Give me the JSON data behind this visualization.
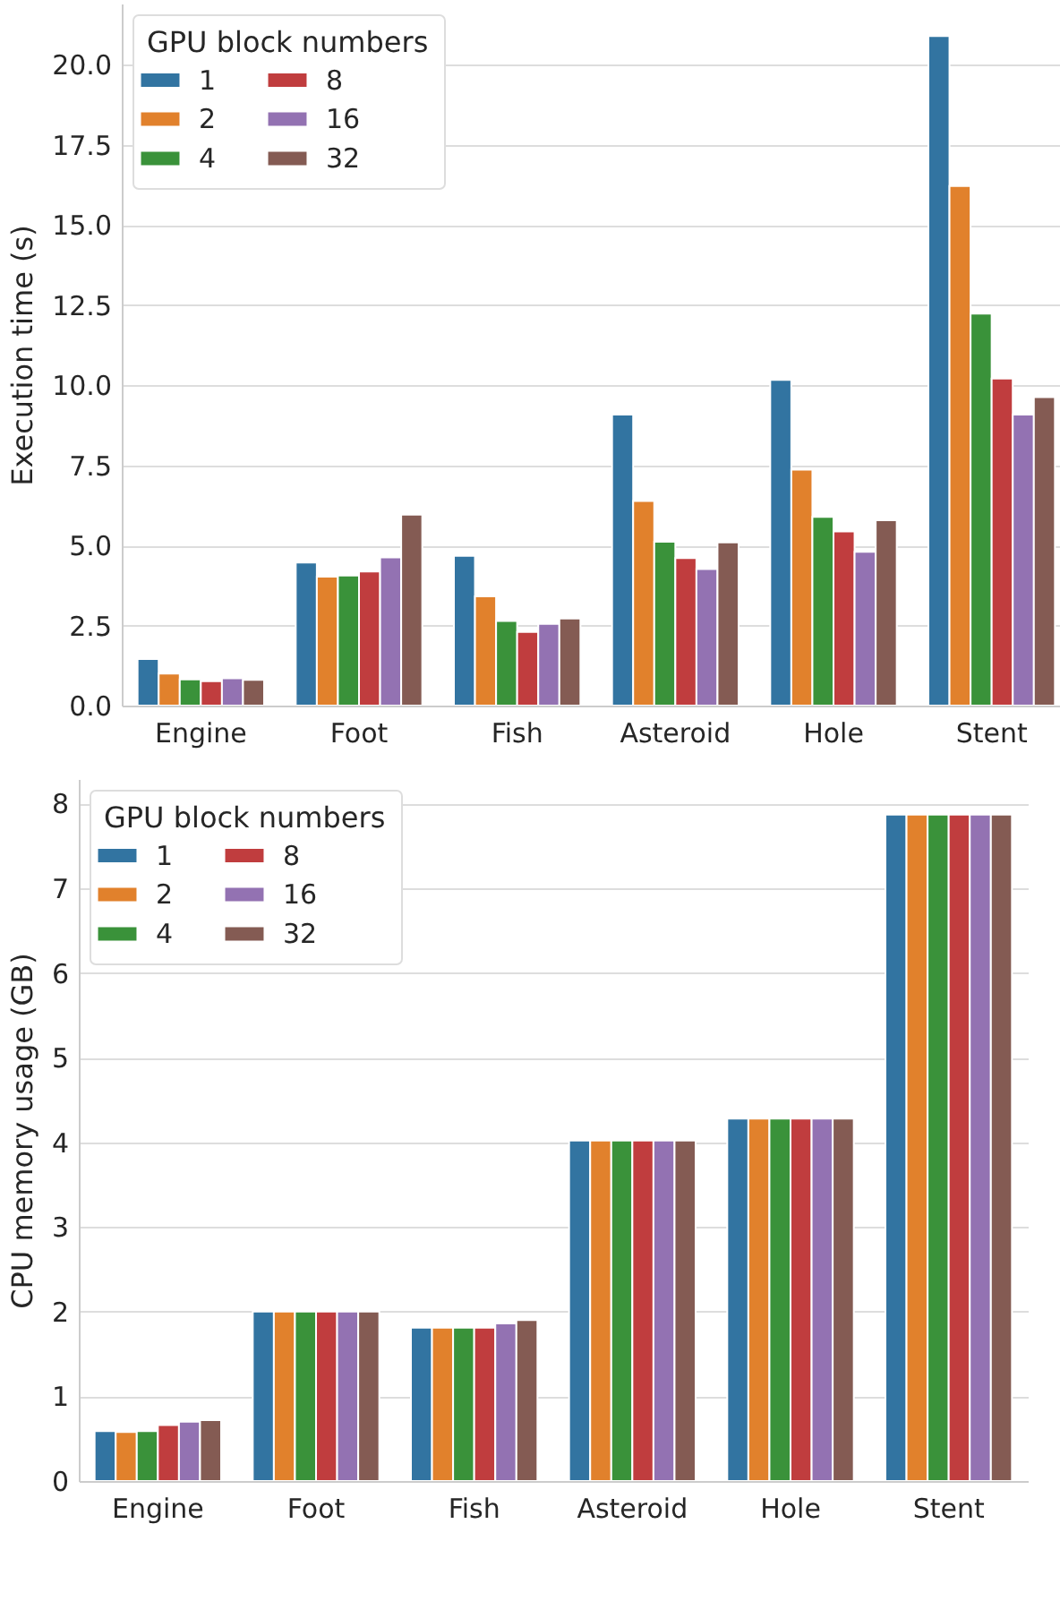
{
  "chart_data": [
    {
      "type": "bar",
      "categories": [
        "Engine",
        "Foot",
        "Fish",
        "Asteroid",
        "Hole",
        "Stent"
      ],
      "ylabel": "Execution time (s)",
      "legend_title": "GPU block numbers",
      "legend": "top left",
      "grid": "y",
      "ylim": [
        0,
        21.9
      ],
      "yticks": [
        {
          "value": 0,
          "label": "0.0"
        },
        2.5,
        {
          "value": 5,
          "label": "5.0"
        },
        7.5,
        {
          "value": 10,
          "label": "10.0"
        },
        12.5,
        {
          "value": 15,
          "label": "15.0"
        },
        17.5,
        {
          "value": 20,
          "label": "20.0"
        }
      ],
      "series": [
        {
          "name": "1",
          "color": "#3274a1",
          "values": [
            1.45,
            4.46,
            4.67,
            9.08,
            10.16,
            20.89
          ]
        },
        {
          "name": "2",
          "color": "#e1812c",
          "values": [
            1.0,
            4.02,
            3.41,
            6.38,
            7.36,
            16.21
          ]
        },
        {
          "name": "4",
          "color": "#3a923a",
          "values": [
            0.82,
            4.06,
            2.64,
            5.11,
            5.89,
            12.23
          ]
        },
        {
          "name": "8",
          "color": "#c03d3e",
          "values": [
            0.76,
            4.18,
            2.3,
            4.6,
            5.43,
            10.2
          ]
        },
        {
          "name": "16",
          "color": "#9372b2",
          "values": [
            0.85,
            4.62,
            2.55,
            4.26,
            4.8,
            9.08
          ]
        },
        {
          "name": "32",
          "color": "#845b53",
          "values": [
            0.8,
            5.96,
            2.72,
            5.09,
            5.78,
            9.62
          ]
        }
      ]
    },
    {
      "type": "bar",
      "categories": [
        "Engine",
        "Foot",
        "Fish",
        "Asteroid",
        "Hole",
        "Stent"
      ],
      "ylabel": "CPU memory usage (GB)",
      "legend_title": "GPU block numbers",
      "legend": "top left",
      "grid": "y",
      "ylim": [
        0,
        8.29
      ],
      "yticks": [
        0,
        1,
        2,
        3,
        4,
        5,
        6,
        7,
        8
      ],
      "series": [
        {
          "name": "1",
          "color": "#3274a1",
          "values": [
            0.59,
            2.0,
            1.81,
            4.02,
            4.28,
            7.87
          ]
        },
        {
          "name": "2",
          "color": "#e1812c",
          "values": [
            0.58,
            2.0,
            1.81,
            4.02,
            4.28,
            7.87
          ]
        },
        {
          "name": "4",
          "color": "#3a923a",
          "values": [
            0.59,
            2.0,
            1.81,
            4.02,
            4.28,
            7.87
          ]
        },
        {
          "name": "8",
          "color": "#c03d3e",
          "values": [
            0.66,
            2.0,
            1.81,
            4.02,
            4.28,
            7.87
          ]
        },
        {
          "name": "16",
          "color": "#9372b2",
          "values": [
            0.7,
            2.0,
            1.86,
            4.02,
            4.28,
            7.87
          ]
        },
        {
          "name": "32",
          "color": "#845b53",
          "values": [
            0.72,
            2.0,
            1.9,
            4.02,
            4.28,
            7.87
          ]
        }
      ]
    }
  ]
}
